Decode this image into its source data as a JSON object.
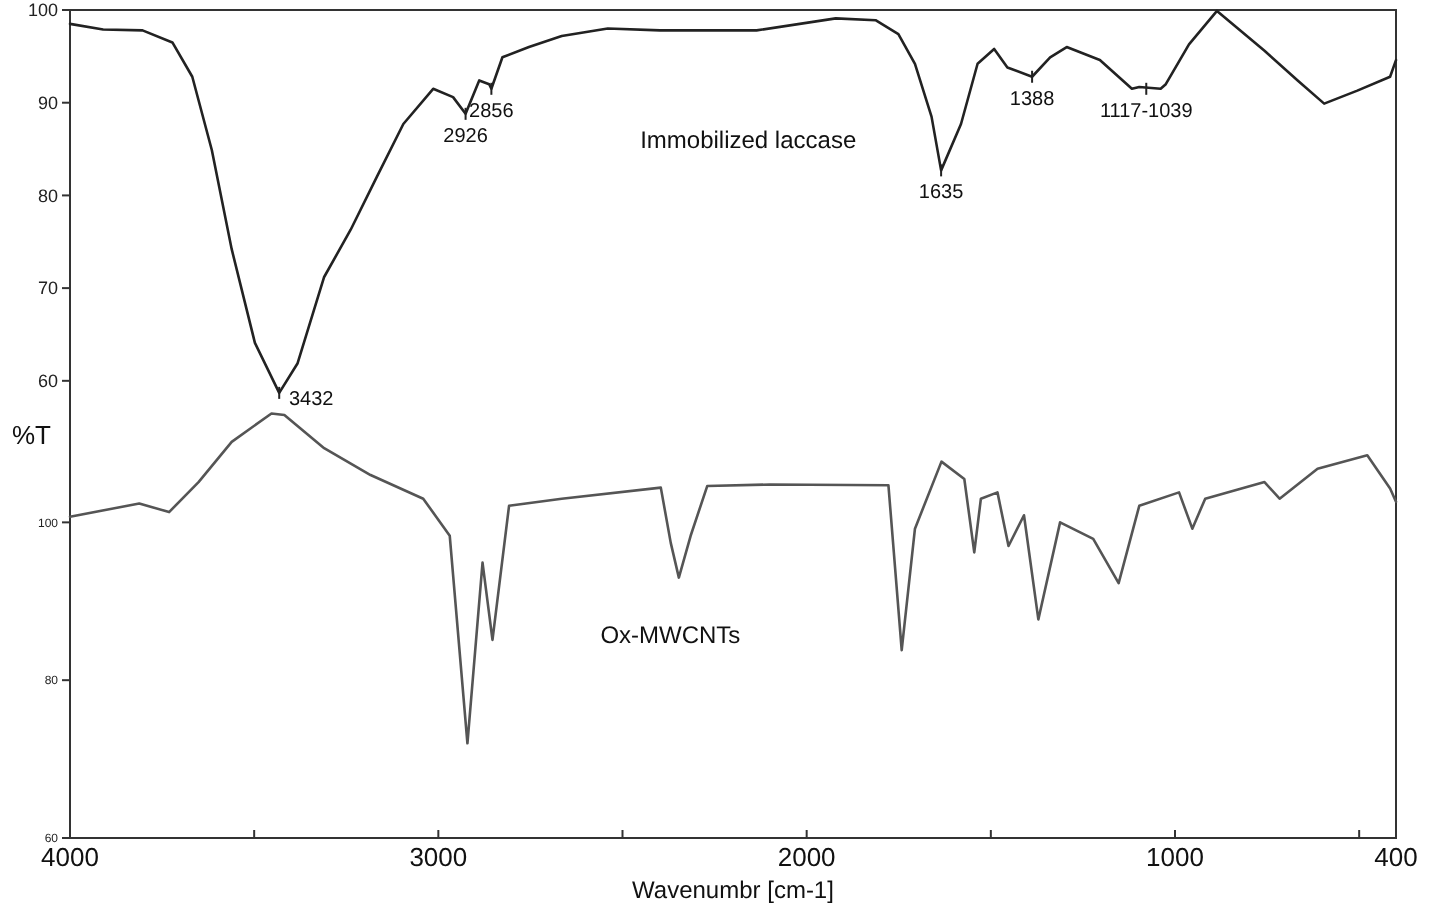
{
  "chart_data": [
    {
      "type": "line",
      "xlim": [
        4000,
        400
      ],
      "ylim": [
        57.5,
        100
      ],
      "yticks": [
        60,
        70,
        80,
        90,
        100
      ],
      "tick_labels": "y",
      "grid": false,
      "marker": "none",
      "line_style": "solid",
      "series": [
        {
          "name": "Immobilized laccase",
          "color": "#222222",
          "x": [
            4000,
            3910,
            3803,
            3722,
            3668,
            3615,
            3561,
            3498,
            3432,
            3382,
            3310,
            3238,
            3167,
            3095,
            3014,
            2960,
            2926,
            2889,
            2862,
            2856,
            2826,
            2754,
            2665,
            2540,
            2398,
            2280,
            2136,
            1921,
            1813,
            1751,
            1706,
            1661,
            1635,
            1581,
            1536,
            1491,
            1455,
            1388,
            1339,
            1294,
            1204,
            1117,
            1097,
            1039,
            1025,
            962,
            886,
            757,
            667,
            595,
            505,
            416,
            400
          ],
          "values": [
            98.5,
            97.9,
            97.8,
            96.5,
            92.8,
            84.9,
            74.2,
            64.1,
            58.7,
            61.9,
            71.2,
            76.3,
            82,
            87.7,
            91.5,
            90.6,
            88.8,
            92.4,
            92,
            91.5,
            94.9,
            96,
            97.2,
            98,
            97.8,
            97.8,
            97.8,
            99.1,
            98.9,
            97.4,
            94.2,
            88.5,
            82.7,
            87.7,
            94.2,
            95.8,
            93.8,
            92.8,
            94.9,
            96,
            94.6,
            91.5,
            91.7,
            91.5,
            92,
            96.3,
            99.9,
            95.6,
            92.4,
            89.9,
            91.3,
            92.8,
            94.6
          ]
        }
      ],
      "annotations": [
        {
          "text": "3432",
          "x": 3432,
          "y": 58.7
        },
        {
          "text": "2926",
          "x": 2926,
          "y": 88.8
        },
        {
          "text": "2856",
          "x": 2856,
          "y": 91.5
        },
        {
          "text": "1635",
          "x": 1635,
          "y": 82.7
        },
        {
          "text": "1388",
          "x": 1388,
          "y": 92.8
        },
        {
          "text": "1117-1039",
          "x": 1078,
          "y": 91.5
        }
      ]
    },
    {
      "type": "line",
      "xlim": [
        4000,
        400
      ],
      "ylim": [
        60,
        115
      ],
      "xticks": [
        4000,
        {
          "value": 3500,
          "label": null
        },
        3000,
        {
          "value": 2500,
          "label": null
        },
        2000,
        {
          "value": 1500,
          "label": null
        },
        1000,
        {
          "value": 500,
          "label": null
        },
        400
      ],
      "yticks": [
        60,
        80,
        100
      ],
      "xlabel": "Wavenumbr [cm-1]",
      "ylabel": "%T",
      "grid": false,
      "marker": "none",
      "line_style": "solid",
      "series": [
        {
          "name": "Ox-MWCNTs",
          "color": "#555555",
          "x": [
            4000,
            3812,
            3731,
            3651,
            3561,
            3453,
            3418,
            3310,
            3184,
            3041,
            2969,
            2921,
            2880,
            2853,
            2808,
            2665,
            2396,
            2369,
            2347,
            2315,
            2270,
            2100,
            1778,
            1742,
            1706,
            1634,
            1572,
            1545,
            1527,
            1482,
            1452,
            1410,
            1371,
            1312,
            1222,
            1153,
            1097,
            989,
            953,
            918,
            757,
            716,
            613,
            478,
            416,
            400
          ],
          "values": [
            100.7,
            102.4,
            101.3,
            105.1,
            110.2,
            113.8,
            113.6,
            109.4,
            106,
            103,
            98.3,
            72,
            94.9,
            85.1,
            102.1,
            103,
            104.4,
            97.4,
            93,
            98.3,
            104.6,
            104.8,
            104.7,
            83.8,
            99.2,
            107.7,
            105.5,
            96.2,
            103,
            103.8,
            97,
            100.9,
            87.7,
            100,
            97.9,
            92.3,
            102.1,
            103.8,
            99.2,
            103,
            105.1,
            103,
            106.8,
            108.5,
            104.3,
            102.6
          ]
        }
      ]
    }
  ]
}
